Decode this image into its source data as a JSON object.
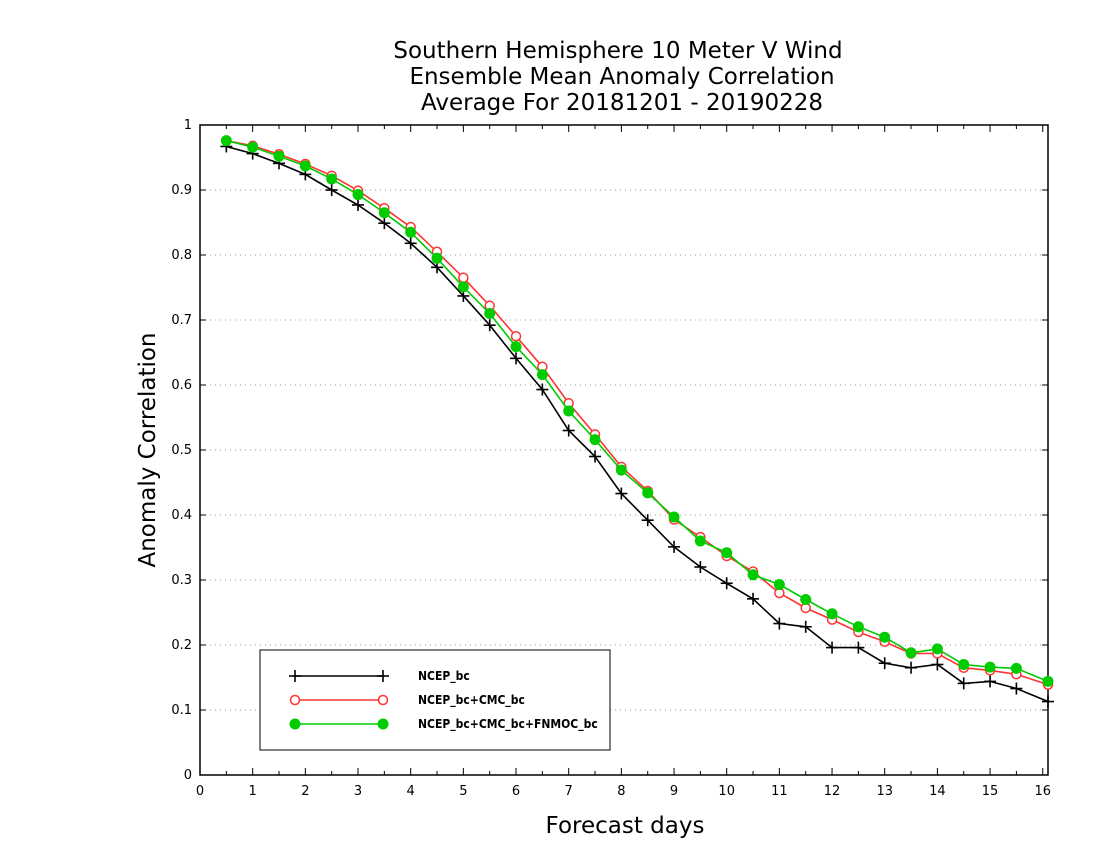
{
  "chart_data": {
    "type": "line",
    "title_lines": [
      "Southern Hemisphere 10 Meter V Wind",
      "Ensemble Mean Anomaly Correlation",
      "Average For 20181201 - 20190228"
    ],
    "xlabel": "Forecast days",
    "ylabel": "Anomaly Correlation",
    "xlim": [
      0,
      16.1
    ],
    "ylim": [
      0,
      1
    ],
    "xticks": [
      "0",
      "1",
      "2",
      "3",
      "4",
      "5",
      "6",
      "7",
      "8",
      "9",
      "10",
      "11",
      "12",
      "13",
      "14",
      "15",
      "16"
    ],
    "yticks": [
      "0",
      "0.1",
      "0.2",
      "0.3",
      "0.4",
      "0.5",
      "0.6",
      "0.7",
      "0.8",
      "0.9",
      "1"
    ],
    "grid": "horizontal dotted",
    "legend_position": "bottom-left",
    "x": [
      0.5,
      1,
      1.5,
      2,
      2.5,
      3,
      3.5,
      4,
      4.5,
      5,
      5.5,
      6,
      6.5,
      7,
      7.5,
      8,
      8.5,
      9,
      9.5,
      10,
      10.5,
      11,
      11.5,
      12,
      12.5,
      13,
      13.5,
      14,
      14.5,
      15,
      15.5,
      16.1
    ],
    "series": [
      {
        "name": "NCEP_bc",
        "color": "#000000",
        "marker": "plus",
        "values": [
          0.967,
          0.956,
          0.941,
          0.924,
          0.9,
          0.877,
          0.849,
          0.818,
          0.781,
          0.737,
          0.692,
          0.641,
          0.593,
          0.53,
          0.49,
          0.433,
          0.392,
          0.351,
          0.32,
          0.295,
          0.271,
          0.233,
          0.228,
          0.196,
          0.196,
          0.172,
          0.165,
          0.17,
          0.141,
          0.144,
          0.133,
          0.113
        ]
      },
      {
        "name": "NCEP_bc+CMC_bc",
        "color": "#ff3333",
        "marker": "open-circle",
        "values": [
          0.976,
          0.968,
          0.955,
          0.94,
          0.922,
          0.899,
          0.872,
          0.843,
          0.805,
          0.765,
          0.722,
          0.675,
          0.628,
          0.572,
          0.524,
          0.474,
          0.437,
          0.393,
          0.366,
          0.337,
          0.313,
          0.28,
          0.257,
          0.239,
          0.22,
          0.205,
          0.187,
          0.187,
          0.165,
          0.161,
          0.155,
          0.139
        ]
      },
      {
        "name": "NCEP_bc+CMC_bc+FNMOC_bc",
        "color": "#00cc00",
        "marker": "filled-circle",
        "values": [
          0.976,
          0.966,
          0.952,
          0.937,
          0.917,
          0.893,
          0.865,
          0.835,
          0.795,
          0.751,
          0.71,
          0.659,
          0.616,
          0.56,
          0.516,
          0.469,
          0.434,
          0.397,
          0.36,
          0.342,
          0.308,
          0.293,
          0.27,
          0.248,
          0.228,
          0.212,
          0.188,
          0.194,
          0.17,
          0.166,
          0.164,
          0.144
        ]
      }
    ]
  }
}
